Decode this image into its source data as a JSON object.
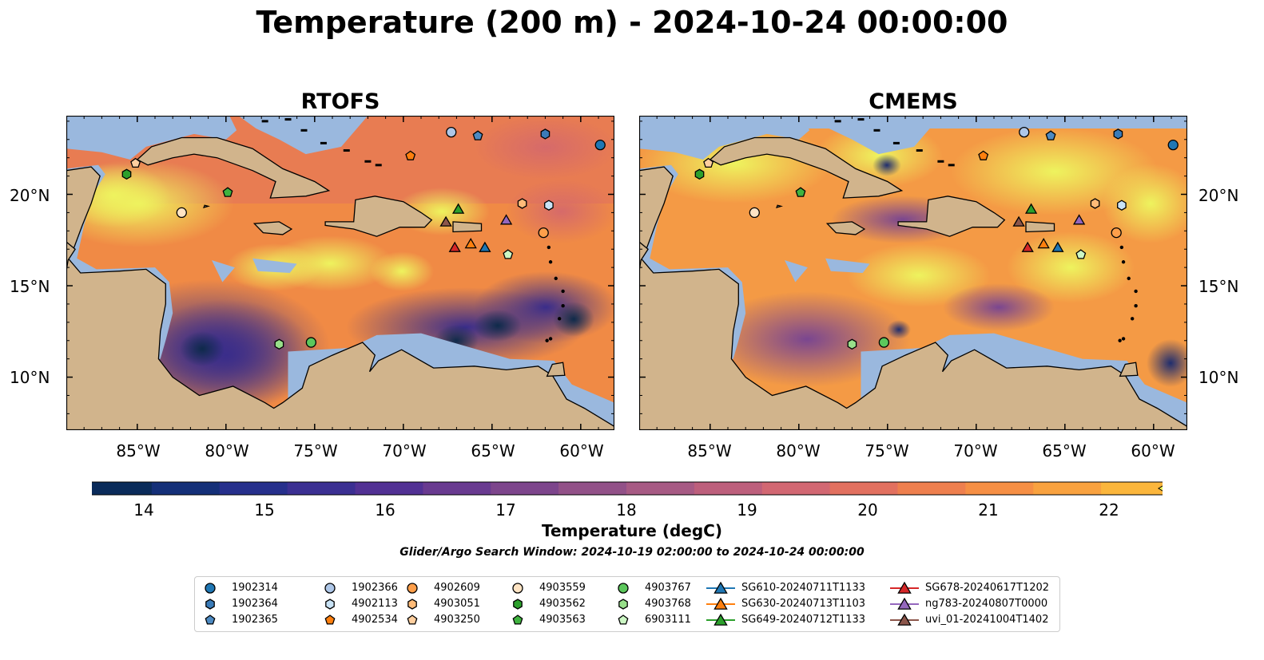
{
  "title": "Temperature (200 m) - 2024-10-24 00:00:00",
  "panels": [
    {
      "title": "RTOFS"
    },
    {
      "title": "CMEMS"
    }
  ],
  "lat_labels": [
    "20°N",
    "15°N",
    "10°N"
  ],
  "lon_labels": [
    "85°W",
    "80°W",
    "75°W",
    "70°W",
    "65°W",
    "60°W"
  ],
  "colorbar": {
    "label": "Temperature (degC)",
    "ticks": [
      "14",
      "15",
      "16",
      "17",
      "18",
      "19",
      "20",
      "21",
      "22"
    ],
    "range": [
      14,
      22
    ],
    "extend": "both",
    "colormap": "thermal"
  },
  "search_window": "Glider/Argo Search Window: 2024-10-19 02:00:00 to 2024-10-24 00:00:00",
  "colors": {
    "land": "#d1b48c",
    "shelf": "#9ab8de",
    "deep_mask": "#06202f"
  },
  "legend": [
    {
      "label": "1902314",
      "marker": "circle",
      "color": "#1f77b4"
    },
    {
      "label": "1902364",
      "marker": "hexagon",
      "color": "#3a7bb8"
    },
    {
      "label": "1902365",
      "marker": "pentagon",
      "color": "#4d8ac2"
    },
    {
      "label": "1902366",
      "marker": "circle",
      "color": "#aec7e8"
    },
    {
      "label": "4902113",
      "marker": "hexagon",
      "color": "#c9e3f6"
    },
    {
      "label": "4902534",
      "marker": "pentagon",
      "color": "#ff7f0e"
    },
    {
      "label": "4902609",
      "marker": "circle",
      "color": "#ff9f4a"
    },
    {
      "label": "4903051",
      "marker": "hexagon",
      "color": "#ffbb78"
    },
    {
      "label": "4903250",
      "marker": "pentagon",
      "color": "#ffcf9f"
    },
    {
      "label": "4903559",
      "marker": "circle",
      "color": "#ffe4c4"
    },
    {
      "label": "4903562",
      "marker": "hexagon",
      "color": "#2ca02c"
    },
    {
      "label": "4903563",
      "marker": "pentagon",
      "color": "#3fb33f"
    },
    {
      "label": "4903767",
      "marker": "circle",
      "color": "#5cc75c"
    },
    {
      "label": "4903768",
      "marker": "hexagon",
      "color": "#98df8a"
    },
    {
      "label": "6903111",
      "marker": "pentagon",
      "color": "#ccf7c4"
    },
    {
      "label": "SG610-20240711T1133",
      "marker": "triangle",
      "color": "#1f77b4"
    },
    {
      "label": "SG630-20240713T1103",
      "marker": "triangle",
      "color": "#ff7f0e"
    },
    {
      "label": "SG649-20240712T1133",
      "marker": "triangle",
      "color": "#2ca02c"
    },
    {
      "label": "SG678-20240617T1202",
      "marker": "triangle",
      "color": "#d62728"
    },
    {
      "label": "ng783-20240807T0000",
      "marker": "triangle",
      "color": "#9467bd"
    },
    {
      "label": "uvi_01-20241004T1402",
      "marker": "triangle",
      "color": "#8c564b"
    }
  ],
  "observations": [
    {
      "id": "1902314",
      "lon": -58.9,
      "lat": 22.7
    },
    {
      "id": "1902364",
      "lon": -62.0,
      "lat": 23.3
    },
    {
      "id": "1902365",
      "lon": -65.8,
      "lat": 23.2
    },
    {
      "id": "1902366",
      "lon": -67.3,
      "lat": 23.4
    },
    {
      "id": "4902113",
      "lon": -61.8,
      "lat": 19.4
    },
    {
      "id": "4902534",
      "lon": -69.6,
      "lat": 22.1
    },
    {
      "id": "4902609",
      "lon": -62.1,
      "lat": 17.9
    },
    {
      "id": "4903051",
      "lon": -63.3,
      "lat": 19.5
    },
    {
      "id": "4903250",
      "lon": -85.1,
      "lat": 21.7
    },
    {
      "id": "4903559",
      "lon": -82.5,
      "lat": 19.0
    },
    {
      "id": "4903562",
      "lon": -85.6,
      "lat": 21.1
    },
    {
      "id": "4903563",
      "lon": -79.9,
      "lat": 20.1
    },
    {
      "id": "4903767",
      "lon": -75.2,
      "lat": 11.9
    },
    {
      "id": "4903768",
      "lon": -77.0,
      "lat": 11.8
    },
    {
      "id": "6903111",
      "lon": -64.1,
      "lat": 16.7
    },
    {
      "id": "SG610-20240711T1133",
      "lon": -65.4,
      "lat": 17.1
    },
    {
      "id": "SG630-20240713T1103",
      "lon": -66.2,
      "lat": 17.3
    },
    {
      "id": "SG649-20240712T1133",
      "lon": -66.9,
      "lat": 19.2
    },
    {
      "id": "SG678-20240617T1202",
      "lon": -67.1,
      "lat": 17.1
    },
    {
      "id": "ng783-20240807T0000",
      "lon": -64.2,
      "lat": 18.6
    },
    {
      "id": "uvi_01-20241004T1402",
      "lon": -67.6,
      "lat": 18.5
    }
  ]
}
